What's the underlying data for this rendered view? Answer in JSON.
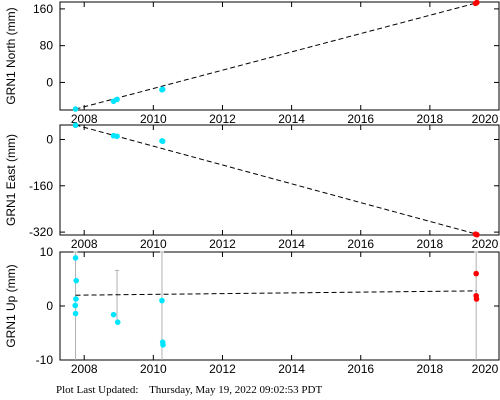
{
  "chart_data": [
    {
      "type": "scatter",
      "xlabel": "",
      "ylabel": "GRN1 North (mm)",
      "xlim": [
        2007.3,
        2020.0
      ],
      "ylim": [
        -60,
        175
      ],
      "xticks": [
        2008,
        2010,
        2012,
        2014,
        2016,
        2018,
        2020
      ],
      "yticks": [
        0,
        80,
        160
      ],
      "grid": false,
      "trend": {
        "x": [
          2007.75,
          2019.35
        ],
        "y": [
          -58,
          173
        ]
      },
      "series": [
        {
          "color": "#00e5ff",
          "x": [
            2007.75,
            2008.85,
            2008.95,
            2010.25,
            2010.27
          ],
          "y": [
            -58,
            -41,
            -37,
            -16,
            -15
          ]
        },
        {
          "color": "#ff0000",
          "x": [
            2019.32,
            2019.36
          ],
          "y": [
            172,
            174
          ]
        }
      ]
    },
    {
      "type": "scatter",
      "xlabel": "",
      "ylabel": "GRN1 East (mm)",
      "xlim": [
        2007.3,
        2020.0
      ],
      "ylim": [
        -330,
        50
      ],
      "xticks": [
        2008,
        2010,
        2012,
        2014,
        2016,
        2018,
        2020
      ],
      "yticks": [
        0,
        -160,
        -320
      ],
      "grid": false,
      "trend": {
        "x": [
          2007.75,
          2019.35
        ],
        "y": [
          50,
          -327
        ]
      },
      "series": [
        {
          "color": "#00e5ff",
          "x": [
            2007.75,
            2008.85,
            2008.95,
            2010.25,
            2010.27
          ],
          "y": [
            49,
            13,
            11,
            -5,
            -6
          ]
        },
        {
          "color": "#ff0000",
          "x": [
            2019.32,
            2019.36
          ],
          "y": [
            -327,
            -329
          ]
        }
      ]
    },
    {
      "type": "scatter",
      "xlabel": "",
      "ylabel": "GRN1 Up (mm)",
      "xlim": [
        2007.3,
        2020.0
      ],
      "ylim": [
        -10,
        10
      ],
      "xticks": [
        2008,
        2010,
        2012,
        2014,
        2016,
        2018,
        2020
      ],
      "yticks": [
        10,
        0,
        -10
      ],
      "grid": false,
      "trend": {
        "x": [
          2007.75,
          2019.35
        ],
        "y": [
          2.0,
          2.8
        ]
      },
      "errorbars": [
        {
          "x": 2007.75,
          "low": -10,
          "high": 10
        },
        {
          "x": 2008.95,
          "low": -3,
          "high": 6.6
        },
        {
          "x": 2010.25,
          "low": -10,
          "high": 10
        },
        {
          "x": 2019.34,
          "low": -10,
          "high": 10
        }
      ],
      "series": [
        {
          "color": "#00e5ff",
          "x": [
            2007.75,
            2007.77,
            2007.76,
            2007.74,
            2007.75,
            2008.85,
            2008.97,
            2010.25,
            2010.27,
            2010.28
          ],
          "y": [
            8.9,
            4.7,
            1.3,
            0.1,
            -1.4,
            -1.6,
            -3.0,
            1.0,
            -6.7,
            -7.2
          ]
        },
        {
          "color": "#ff0000",
          "x": [
            2019.34,
            2019.34,
            2019.35
          ],
          "y": [
            6.0,
            1.9,
            1.3
          ]
        }
      ]
    }
  ],
  "footer": {
    "label": "Plot Last Updated:",
    "value": "Thursday, May 19, 2022 09:02:53 PDT"
  }
}
